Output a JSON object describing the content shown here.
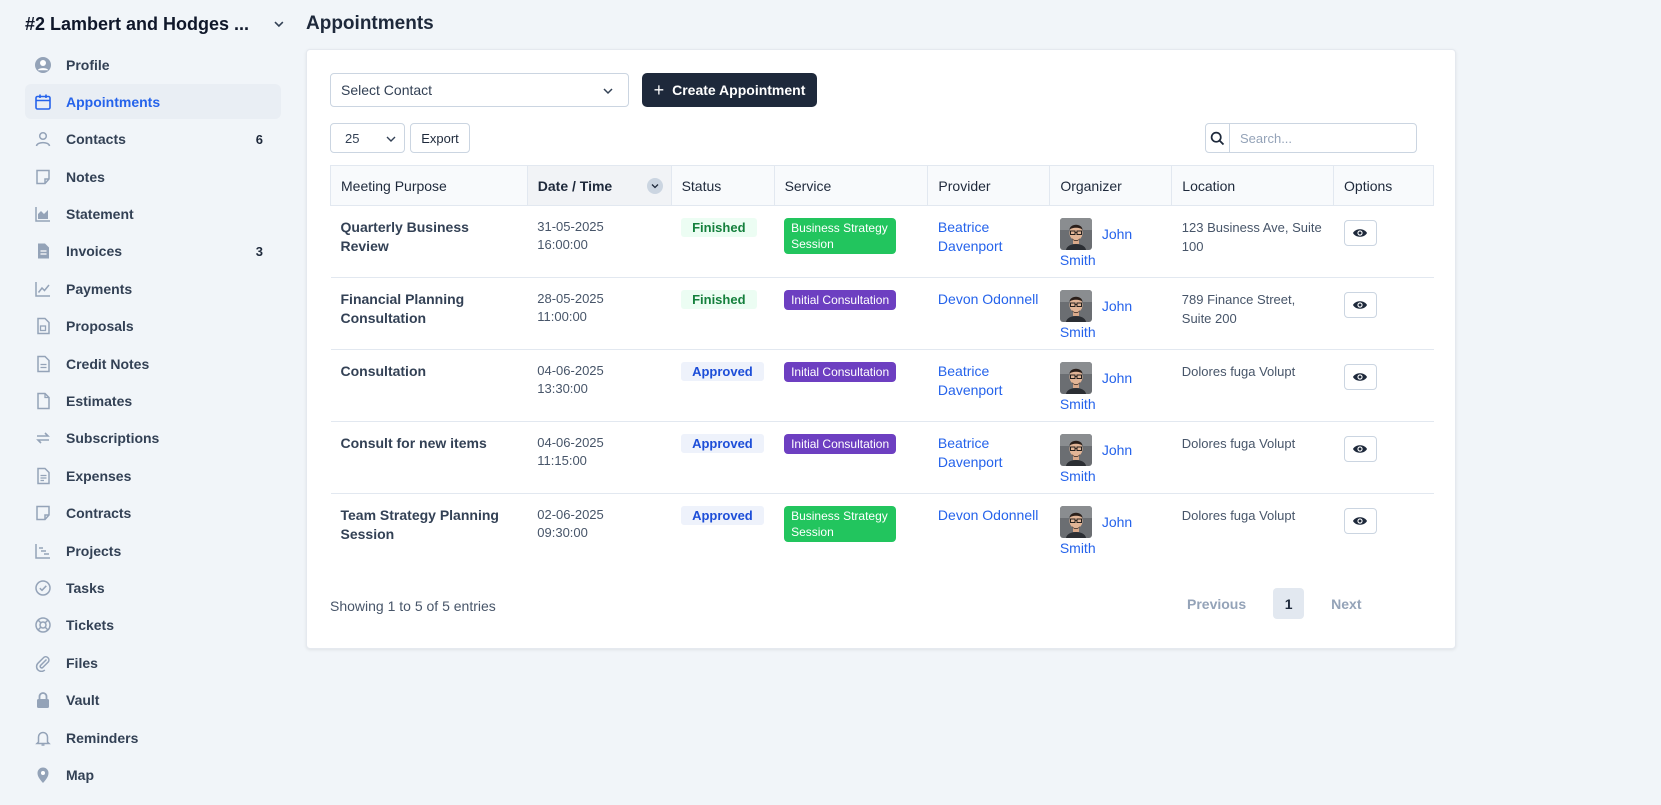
{
  "client": {
    "name": "#2 Lambert and Hodges ..."
  },
  "sidebar": {
    "items": [
      {
        "label": "Profile",
        "icon": "user-circle-icon",
        "count": ""
      },
      {
        "label": "Appointments",
        "icon": "calendar-icon",
        "count": "",
        "active": true
      },
      {
        "label": "Contacts",
        "icon": "user-icon",
        "count": "6"
      },
      {
        "label": "Notes",
        "icon": "note-icon",
        "count": ""
      },
      {
        "label": "Statement",
        "icon": "area-chart-icon",
        "count": ""
      },
      {
        "label": "Invoices",
        "icon": "invoice-icon",
        "count": "3"
      },
      {
        "label": "Payments",
        "icon": "line-chart-icon",
        "count": ""
      },
      {
        "label": "Proposals",
        "icon": "proposal-icon",
        "count": ""
      },
      {
        "label": "Credit Notes",
        "icon": "document-icon",
        "count": ""
      },
      {
        "label": "Estimates",
        "icon": "file-icon",
        "count": ""
      },
      {
        "label": "Subscriptions",
        "icon": "refresh-icon",
        "count": ""
      },
      {
        "label": "Expenses",
        "icon": "document-lines-icon",
        "count": ""
      },
      {
        "label": "Contracts",
        "icon": "contract-icon",
        "count": ""
      },
      {
        "label": "Projects",
        "icon": "chart-steps-icon",
        "count": ""
      },
      {
        "label": "Tasks",
        "icon": "check-circle-icon",
        "count": ""
      },
      {
        "label": "Tickets",
        "icon": "lifebuoy-icon",
        "count": ""
      },
      {
        "label": "Files",
        "icon": "paperclip-icon",
        "count": ""
      },
      {
        "label": "Vault",
        "icon": "lock-icon",
        "count": ""
      },
      {
        "label": "Reminders",
        "icon": "bell-icon",
        "count": ""
      },
      {
        "label": "Map",
        "icon": "map-pin-icon",
        "count": ""
      }
    ]
  },
  "page": {
    "title": "Appointments"
  },
  "toolbar": {
    "contact_placeholder": "Select Contact",
    "create_label": "Create Appointment",
    "page_size": "25",
    "export_label": "Export",
    "search_placeholder": "Search..."
  },
  "table": {
    "headers": [
      "Meeting Purpose",
      "Date / Time",
      "Status",
      "Service",
      "Provider",
      "Organizer",
      "Location",
      "Options"
    ],
    "rows": [
      {
        "purpose": "Quarterly Business Review",
        "date": "31-05-2025",
        "time": "16:00:00",
        "status": "Finished",
        "service": "Business Strategy Session",
        "provider": "Beatrice Davenport",
        "org_first": "John",
        "org_last": "Smith",
        "location": "123 Business Ave, Suite 100"
      },
      {
        "purpose": "Financial Planning Consultation",
        "date": "28-05-2025",
        "time": "11:00:00",
        "status": "Finished",
        "service": "Initial Consultation",
        "provider": "Devon Odonnell",
        "org_first": "John",
        "org_last": "Smith",
        "location": "789 Finance Street, Suite 200"
      },
      {
        "purpose": "Consultation",
        "date": "04-06-2025",
        "time": "13:30:00",
        "status": "Approved",
        "service": "Initial Consultation",
        "provider": "Beatrice Davenport",
        "org_first": "John",
        "org_last": "Smith",
        "location": "Dolores fuga Volupt"
      },
      {
        "purpose": "Consult for new items",
        "date": "04-06-2025",
        "time": "11:15:00",
        "status": "Approved",
        "service": "Initial Consultation",
        "provider": "Beatrice Davenport",
        "org_first": "John",
        "org_last": "Smith",
        "location": "Dolores fuga Volupt"
      },
      {
        "purpose": "Team Strategy Planning Session",
        "date": "02-06-2025",
        "time": "09:30:00",
        "status": "Approved",
        "service": "Business Strategy Session",
        "provider": "Devon Odonnell",
        "org_first": "John",
        "org_last": "Smith",
        "location": "Dolores fuga Volupt"
      }
    ]
  },
  "footer": {
    "info": "Showing 1 to 5 of 5 entries",
    "previous": "Previous",
    "current_page": "1",
    "next": "Next"
  },
  "colors": {
    "accent": "#2563eb",
    "dark_button": "#1e293b",
    "finished_text": "#15803d",
    "approved_text": "#1d4ed8",
    "service_business": "#22c55e",
    "service_initial": "#6d3fc1"
  }
}
